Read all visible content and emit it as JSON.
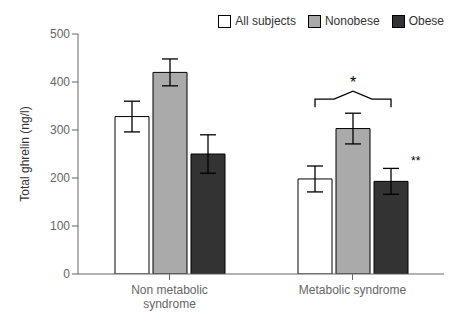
{
  "chart_data": {
    "type": "bar",
    "categories": [
      "Non metabolic\nsyndrome",
      "Metabolic syndrome"
    ],
    "series": [
      {
        "name": "All subjects",
        "color": "#ffffff",
        "values": [
          328,
          198
        ],
        "errors": [
          32,
          27
        ]
      },
      {
        "name": "Nonobese",
        "color": "#aaaaaa",
        "values": [
          420,
          303
        ],
        "errors": [
          28,
          32
        ]
      },
      {
        "name": "Obese",
        "color": "#333333",
        "values": [
          250,
          193
        ],
        "errors": [
          40,
          27
        ]
      }
    ],
    "ylabel": "Total ghrelin (ng/l)",
    "ylim": [
      0,
      500
    ],
    "yticks": [
      0,
      100,
      200,
      300,
      400,
      500
    ],
    "grid": false,
    "legend": "upper right",
    "annotations": [
      {
        "text": "*",
        "category": "Metabolic syndrome"
      },
      {
        "text": "**",
        "category": "Metabolic syndrome",
        "series": "Obese"
      }
    ]
  }
}
